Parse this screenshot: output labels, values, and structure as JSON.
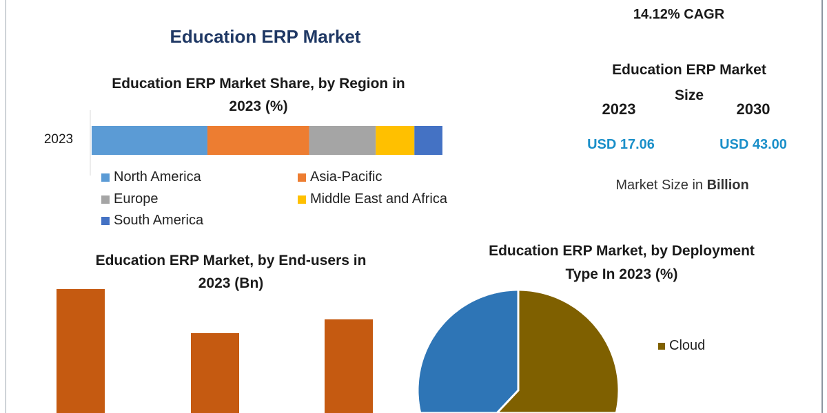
{
  "header": {
    "title": "Education ERP Market",
    "cagr": "14.12% CAGR"
  },
  "market_size": {
    "title_line1": "Education ERP Market",
    "title_line2": "Size",
    "years": [
      "2023",
      "2030"
    ],
    "values": [
      "USD 17.06",
      "USD 43.00"
    ],
    "note_prefix": "Market Size in ",
    "note_bold": "Billion",
    "value_color": "#1a8fc9"
  },
  "chart_data": [
    {
      "type": "bar",
      "orientation": "horizontal-stacked",
      "title_line1": "Education ERP Market Share, by Region in",
      "title_line2": "2023 (%)",
      "categories": [
        "2023"
      ],
      "series": [
        {
          "name": "North America",
          "values": [
            33
          ],
          "color": "#5b9bd5"
        },
        {
          "name": "Asia-Pacific",
          "values": [
            29
          ],
          "color": "#ed7d31"
        },
        {
          "name": "Europe",
          "values": [
            19
          ],
          "color": "#a5a5a5"
        },
        {
          "name": "Middle East and Africa",
          "values": [
            11
          ],
          "color": "#ffc000"
        },
        {
          "name": "South America",
          "values": [
            8
          ],
          "color": "#4472c4"
        }
      ],
      "xlim": [
        0,
        100
      ],
      "legend": "bottom"
    },
    {
      "type": "bar",
      "title_line1": "Education ERP Market, by End-users in",
      "title_line2": "2023 (Bn)",
      "values": [
        180,
        116,
        136
      ],
      "color": "#c55a11"
    },
    {
      "type": "pie",
      "title_line1": "Education ERP Market, by Deployment",
      "title_line2": "Type In 2023 (%)",
      "slices": [
        {
          "name": "Cloud",
          "value": 62,
          "color": "#7f6000"
        },
        {
          "value": 38,
          "color": "#2e75b6"
        }
      ],
      "legend": "right"
    }
  ]
}
